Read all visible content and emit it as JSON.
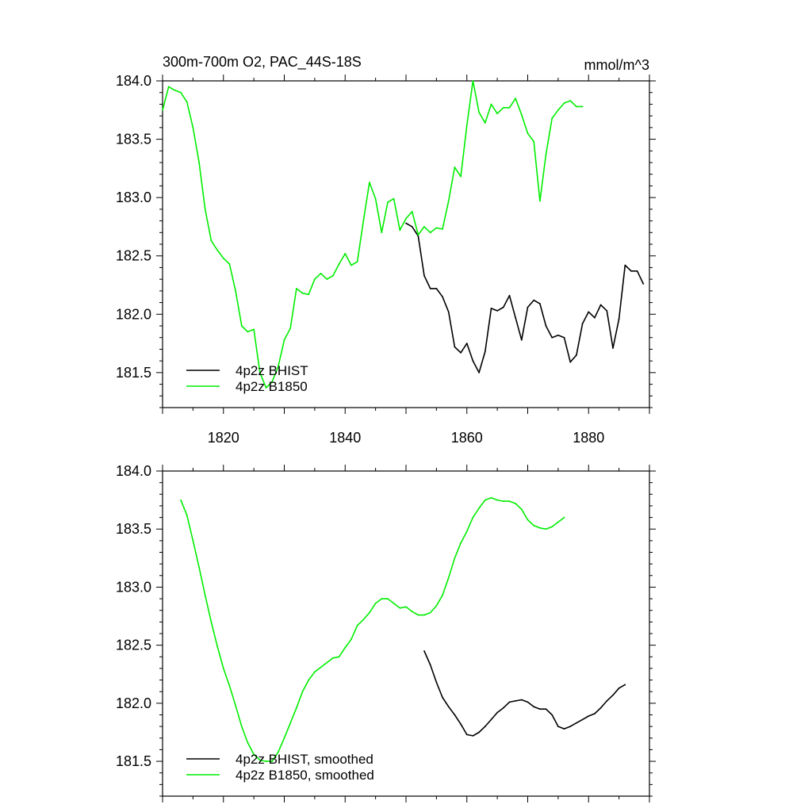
{
  "chart_data": [
    {
      "type": "line",
      "title": "300m-700m O2, PAC_44S-18S",
      "units": "mmol/m^3",
      "xlim": [
        1810,
        1890
      ],
      "ylim": [
        181.2,
        184.0
      ],
      "x_ticks": [
        "1820",
        "1840",
        "1860",
        "1880"
      ],
      "y_ticks": [
        "184.0",
        "183.5",
        "183.0",
        "182.5",
        "182.0",
        "181.5"
      ],
      "legend": "bottom-left",
      "series": [
        {
          "name": "4p2z BHIST",
          "color": "#000000",
          "x": [
            1850,
            1851,
            1852,
            1853,
            1854,
            1855,
            1856,
            1857,
            1858,
            1859,
            1860,
            1861,
            1862,
            1863,
            1864,
            1865,
            1866,
            1867,
            1868,
            1869,
            1870,
            1871,
            1872,
            1873,
            1874,
            1875,
            1876,
            1877,
            1878,
            1879,
            1880,
            1881,
            1882,
            1883,
            1884,
            1885,
            1886,
            1887,
            1888,
            1889
          ],
          "y": [
            182.78,
            182.75,
            182.67,
            182.33,
            182.22,
            182.22,
            182.15,
            182.02,
            181.72,
            181.67,
            181.75,
            181.6,
            181.5,
            181.68,
            182.05,
            182.03,
            182.06,
            182.16,
            181.97,
            181.78,
            182.06,
            182.12,
            182.09,
            181.9,
            181.8,
            181.82,
            181.8,
            181.59,
            181.65,
            181.92,
            182.02,
            181.97,
            182.08,
            182.03,
            181.71,
            181.96,
            182.42,
            182.37,
            182.37,
            182.26
          ]
        },
        {
          "name": "4p2z B1850",
          "color": "#00ee00",
          "x": [
            1810,
            1811,
            1812,
            1813,
            1814,
            1815,
            1816,
            1817,
            1818,
            1819,
            1820,
            1821,
            1822,
            1823,
            1824,
            1825,
            1826,
            1827,
            1828,
            1829,
            1830,
            1831,
            1832,
            1833,
            1834,
            1835,
            1836,
            1837,
            1838,
            1839,
            1840,
            1841,
            1842,
            1843,
            1844,
            1845,
            1846,
            1847,
            1848,
            1849,
            1850,
            1851,
            1852,
            1853,
            1854,
            1855,
            1856,
            1857,
            1858,
            1859,
            1860,
            1861,
            1862,
            1863,
            1864,
            1865,
            1866,
            1867,
            1868,
            1869,
            1870,
            1871,
            1872,
            1873,
            1874,
            1875,
            1876,
            1877,
            1878,
            1879
          ],
          "y": [
            183.75,
            183.95,
            183.92,
            183.9,
            183.82,
            183.6,
            183.3,
            182.9,
            182.63,
            182.55,
            182.48,
            182.43,
            182.2,
            181.9,
            181.85,
            181.87,
            181.5,
            181.37,
            181.42,
            181.55,
            181.78,
            181.88,
            182.22,
            182.18,
            182.17,
            182.3,
            182.35,
            182.3,
            182.33,
            182.43,
            182.52,
            182.42,
            182.45,
            182.8,
            183.13,
            182.99,
            182.7,
            182.96,
            182.99,
            182.72,
            182.82,
            182.88,
            182.68,
            182.75,
            182.7,
            182.74,
            182.73,
            182.97,
            183.26,
            183.18,
            183.62,
            184.0,
            183.73,
            183.64,
            183.8,
            183.72,
            183.77,
            183.77,
            183.85,
            183.71,
            183.55,
            183.48,
            182.97,
            183.37,
            183.68,
            183.75,
            183.81,
            183.83,
            183.78,
            183.78
          ]
        }
      ]
    },
    {
      "type": "line",
      "title": "",
      "units": "",
      "xlim": [
        1810,
        1890
      ],
      "ylim": [
        181.2,
        184.0
      ],
      "x_ticks": [],
      "y_ticks": [
        "184.0",
        "183.5",
        "183.0",
        "182.5",
        "182.0",
        "181.5"
      ],
      "legend": "bottom-left",
      "series": [
        {
          "name": "4p2z BHIST, smoothed",
          "color": "#000000",
          "x": [
            1853,
            1854,
            1855,
            1856,
            1857,
            1858,
            1859,
            1860,
            1861,
            1862,
            1863,
            1864,
            1865,
            1866,
            1867,
            1868,
            1869,
            1870,
            1871,
            1872,
            1873,
            1874,
            1875,
            1876,
            1877,
            1878,
            1879,
            1880,
            1881,
            1882,
            1883,
            1884,
            1885,
            1886
          ],
          "y": [
            182.45,
            182.33,
            182.18,
            182.05,
            181.97,
            181.9,
            181.82,
            181.73,
            181.72,
            181.75,
            181.8,
            181.86,
            181.92,
            181.96,
            182.01,
            182.02,
            182.03,
            182.01,
            181.97,
            181.95,
            181.95,
            181.9,
            181.8,
            181.78,
            181.8,
            181.83,
            181.86,
            181.89,
            181.91,
            181.96,
            182.02,
            182.07,
            182.13,
            182.16
          ]
        },
        {
          "name": "4p2z B1850, smoothed",
          "color": "#00ee00",
          "x": [
            1813,
            1814,
            1815,
            1816,
            1817,
            1818,
            1819,
            1820,
            1821,
            1822,
            1823,
            1824,
            1825,
            1826,
            1827,
            1828,
            1829,
            1830,
            1831,
            1832,
            1833,
            1834,
            1835,
            1836,
            1837,
            1838,
            1839,
            1840,
            1841,
            1842,
            1843,
            1844,
            1845,
            1846,
            1847,
            1848,
            1849,
            1850,
            1851,
            1852,
            1853,
            1854,
            1855,
            1856,
            1857,
            1858,
            1859,
            1860,
            1861,
            1862,
            1863,
            1864,
            1865,
            1866,
            1867,
            1868,
            1869,
            1870,
            1871,
            1872,
            1873,
            1874,
            1875,
            1876
          ],
          "y": [
            183.75,
            183.62,
            183.4,
            183.17,
            182.93,
            182.7,
            182.49,
            182.3,
            182.15,
            181.98,
            181.8,
            181.66,
            181.56,
            181.51,
            181.5,
            181.5,
            181.58,
            181.7,
            181.83,
            181.96,
            182.1,
            182.2,
            182.27,
            182.31,
            182.35,
            182.39,
            182.4,
            182.48,
            182.55,
            182.67,
            182.72,
            182.78,
            182.86,
            182.9,
            182.9,
            182.86,
            182.82,
            182.83,
            182.79,
            182.76,
            182.76,
            182.78,
            182.84,
            182.93,
            183.08,
            183.25,
            183.38,
            183.48,
            183.6,
            183.68,
            183.75,
            183.77,
            183.75,
            183.74,
            183.74,
            183.72,
            183.67,
            183.58,
            183.53,
            183.51,
            183.5,
            183.52,
            183.56,
            183.6
          ]
        }
      ]
    }
  ]
}
